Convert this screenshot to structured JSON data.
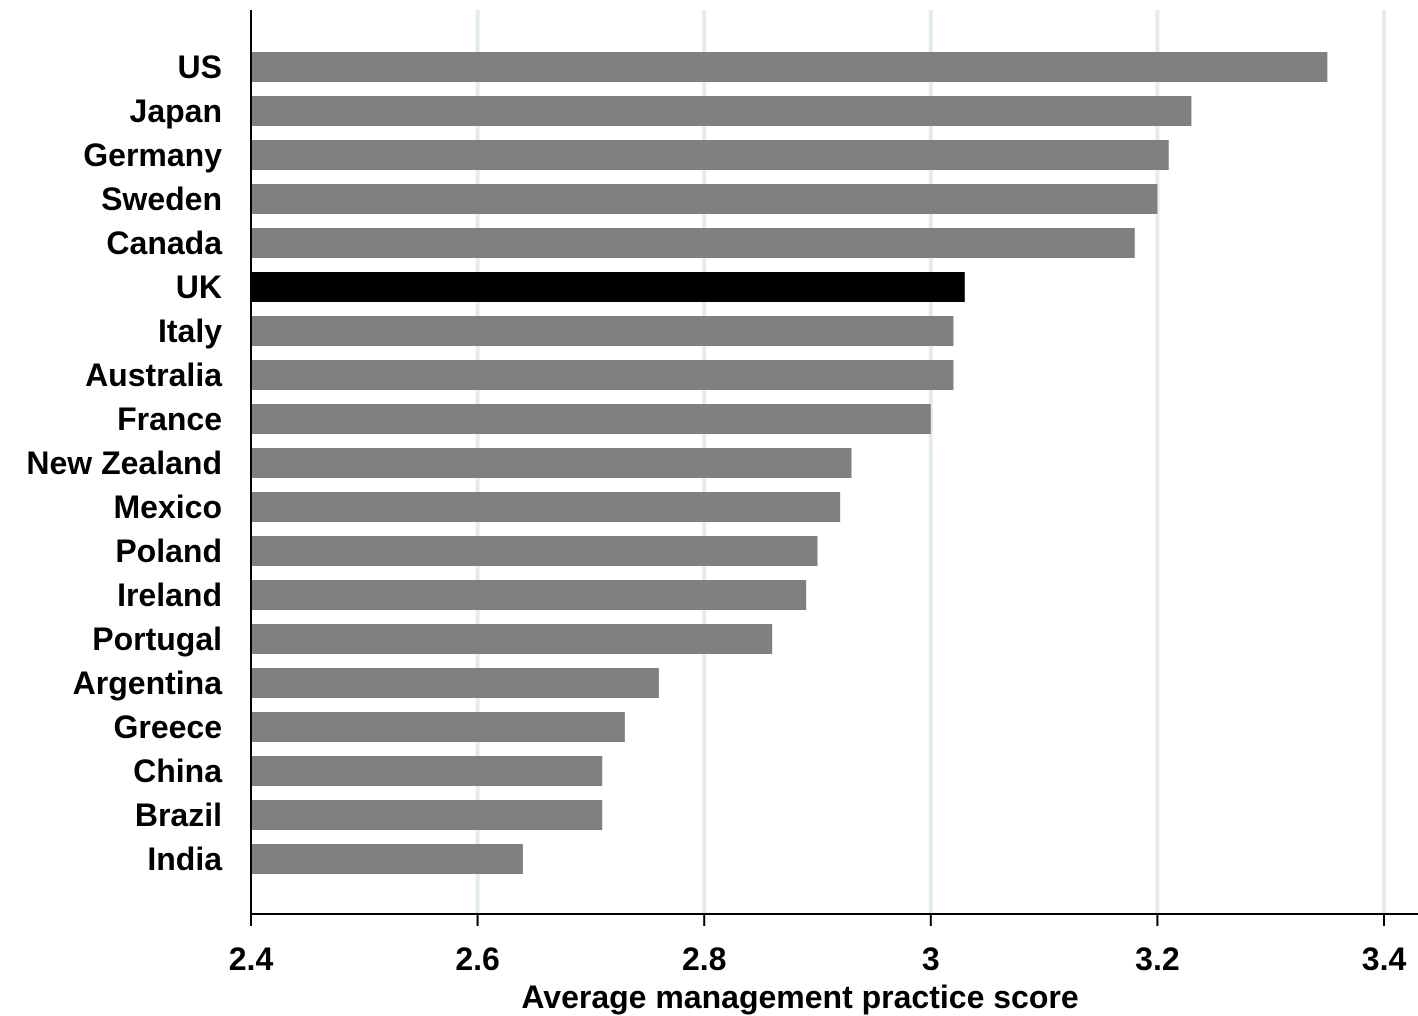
{
  "chart_data": {
    "type": "bar",
    "orientation": "horizontal",
    "categories": [
      "US",
      "Japan",
      "Germany",
      "Sweden",
      "Canada",
      "UK",
      "Italy",
      "Australia",
      "France",
      "New Zealand",
      "Mexico",
      "Poland",
      "Ireland",
      "Portugal",
      "Argentina",
      "Greece",
      "China",
      "Brazil",
      "India"
    ],
    "values": [
      3.35,
      3.23,
      3.21,
      3.2,
      3.18,
      3.03,
      3.02,
      3.02,
      3.0,
      2.93,
      2.92,
      2.9,
      2.89,
      2.86,
      2.76,
      2.73,
      2.71,
      2.71,
      2.64
    ],
    "highlight_category": "UK",
    "xlabel": "Average management practice score",
    "xlim": [
      2.4,
      3.43
    ],
    "xticks": [
      2.4,
      2.6,
      2.8,
      3,
      3.2,
      3.4
    ],
    "xtick_labels": [
      "2.4",
      "2.6",
      "2.8",
      "3",
      "3.2",
      "3.4"
    ],
    "grid": "vertical",
    "legend": "none",
    "colors": {
      "bar": "#808080",
      "highlight": "#000000",
      "grid": "#e3ecec",
      "axis": "#000000"
    }
  }
}
